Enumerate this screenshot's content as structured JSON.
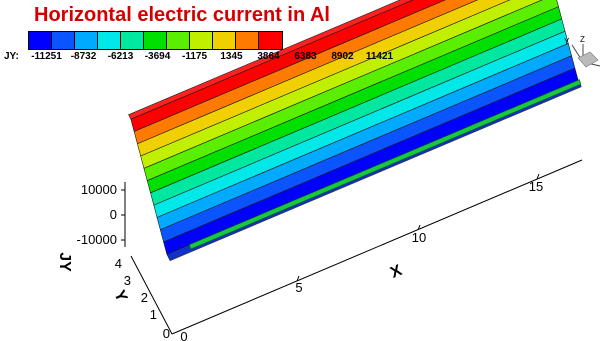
{
  "chart_data": {
    "type": "surface-3d",
    "title": "Horizontal electric current in Al",
    "variable": "JY",
    "legend": {
      "label": "JY:",
      "levels": [
        "-11251",
        "-8732",
        "-6213",
        "-3694",
        "-1175",
        "1345",
        "3864",
        "6383",
        "8902",
        "11421"
      ],
      "colors": [
        "#0000ff",
        "#0a55ff",
        "#00aaff",
        "#00e8e8",
        "#00e8a0",
        "#00e000",
        "#5aee00",
        "#c0f000",
        "#f0d000",
        "#ff7a00",
        "#ff0000"
      ]
    },
    "axes": {
      "x": {
        "label": "X",
        "ticks": [
          "5",
          "10",
          "15"
        ],
        "range": [
          0,
          17.5
        ]
      },
      "y": {
        "label": "Y",
        "ticks": [
          "0",
          "1",
          "2",
          "3",
          "4"
        ],
        "range": [
          0,
          4.6
        ]
      },
      "z": {
        "label": "JY",
        "ticks": [
          "10000",
          "0",
          "-10000"
        ],
        "range": [
          -12500,
          12500
        ]
      },
      "x_zero_label": "0"
    },
    "surface_profile": {
      "description_y": [
        0,
        0.35,
        4.35,
        4.6
      ],
      "jy": [
        -12500,
        -12500,
        12500,
        12500
      ]
    },
    "orientation_triad": {
      "labels": [
        "Y",
        "Z"
      ]
    }
  }
}
